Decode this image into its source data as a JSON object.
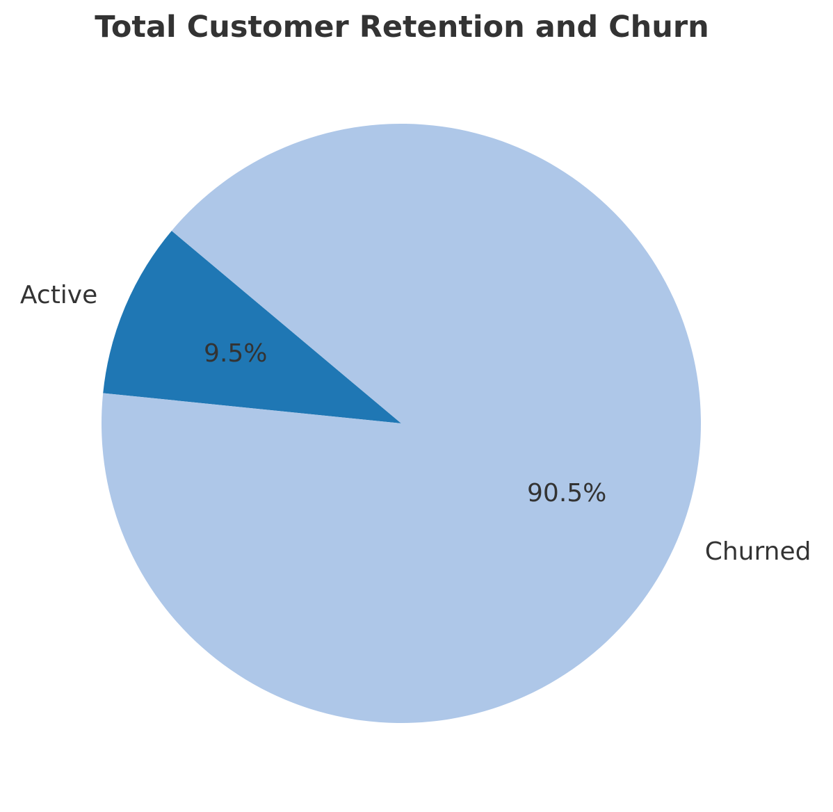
{
  "chart_data": {
    "type": "pie",
    "title": "Total Customer Retention and Churn",
    "slices": [
      {
        "label": "Active",
        "value": 9.5,
        "pct_label": "9.5%",
        "color": "#1f77b4"
      },
      {
        "label": "Churned",
        "value": 90.5,
        "pct_label": "90.5%",
        "color": "#aec7e8"
      }
    ],
    "start_angle_deg": 140,
    "direction": "counterclockwise",
    "legend": "none"
  }
}
